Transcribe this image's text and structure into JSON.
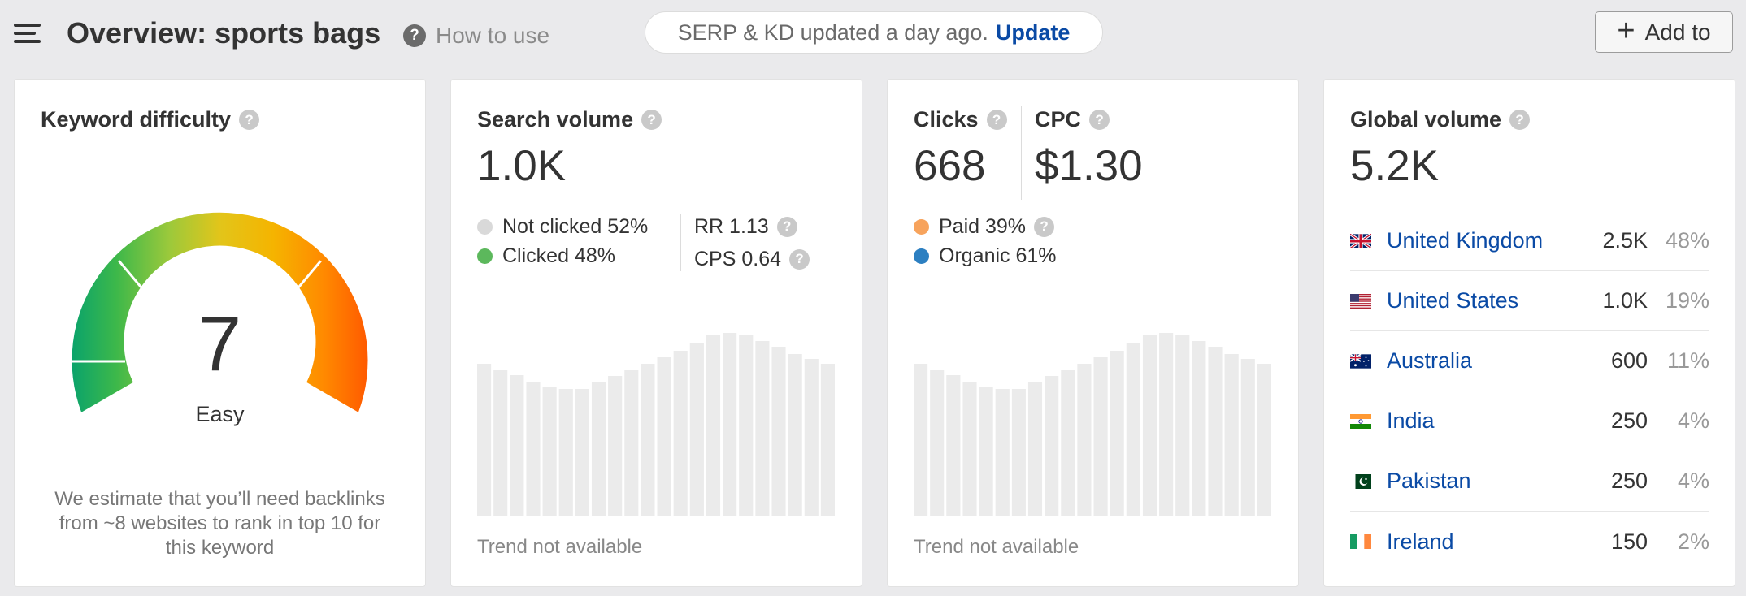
{
  "header": {
    "title": "Overview: sports bags",
    "how_to": "How to use",
    "serp_msg": "SERP & KD updated a day ago.",
    "update": "Update",
    "add_to": "Add to"
  },
  "kd": {
    "title": "Keyword difficulty",
    "value": "7",
    "label": "Easy",
    "note": "We estimate that you’ll need backlinks from ~8 websites to rank in top 10 for this keyword"
  },
  "search_volume": {
    "title": "Search volume",
    "value": "1.0K",
    "not_clicked": "Not clicked 52%",
    "clicked": "Clicked 48%",
    "rr": "RR 1.13",
    "cps": "CPS 0.64",
    "trend_note": "Trend not available"
  },
  "clicks": {
    "title": "Clicks",
    "value": "668",
    "cpc_title": "CPC",
    "cpc_value": "$1.30",
    "paid": "Paid 39%",
    "organic": "Organic 61%",
    "trend_note": "Trend not available"
  },
  "global_volume": {
    "title": "Global volume",
    "value": "5.2K",
    "countries": [
      {
        "name": "United Kingdom",
        "volume": "2.5K",
        "pct": "48%",
        "flag": "uk"
      },
      {
        "name": "United States",
        "volume": "1.0K",
        "pct": "19%",
        "flag": "us"
      },
      {
        "name": "Australia",
        "volume": "600",
        "pct": "11%",
        "flag": "au"
      },
      {
        "name": "India",
        "volume": "250",
        "pct": "4%",
        "flag": "in"
      },
      {
        "name": "Pakistan",
        "volume": "250",
        "pct": "4%",
        "flag": "pk"
      },
      {
        "name": "Ireland",
        "volume": "150",
        "pct": "2%",
        "flag": "ie"
      }
    ]
  },
  "colors": {
    "link": "#0a4aa5",
    "not_clicked": "#d9d9d9",
    "clicked": "#5cb85c",
    "paid": "#f7a35c",
    "organic": "#2c7fc1",
    "placeholder_bar": "#ebebeb"
  }
}
